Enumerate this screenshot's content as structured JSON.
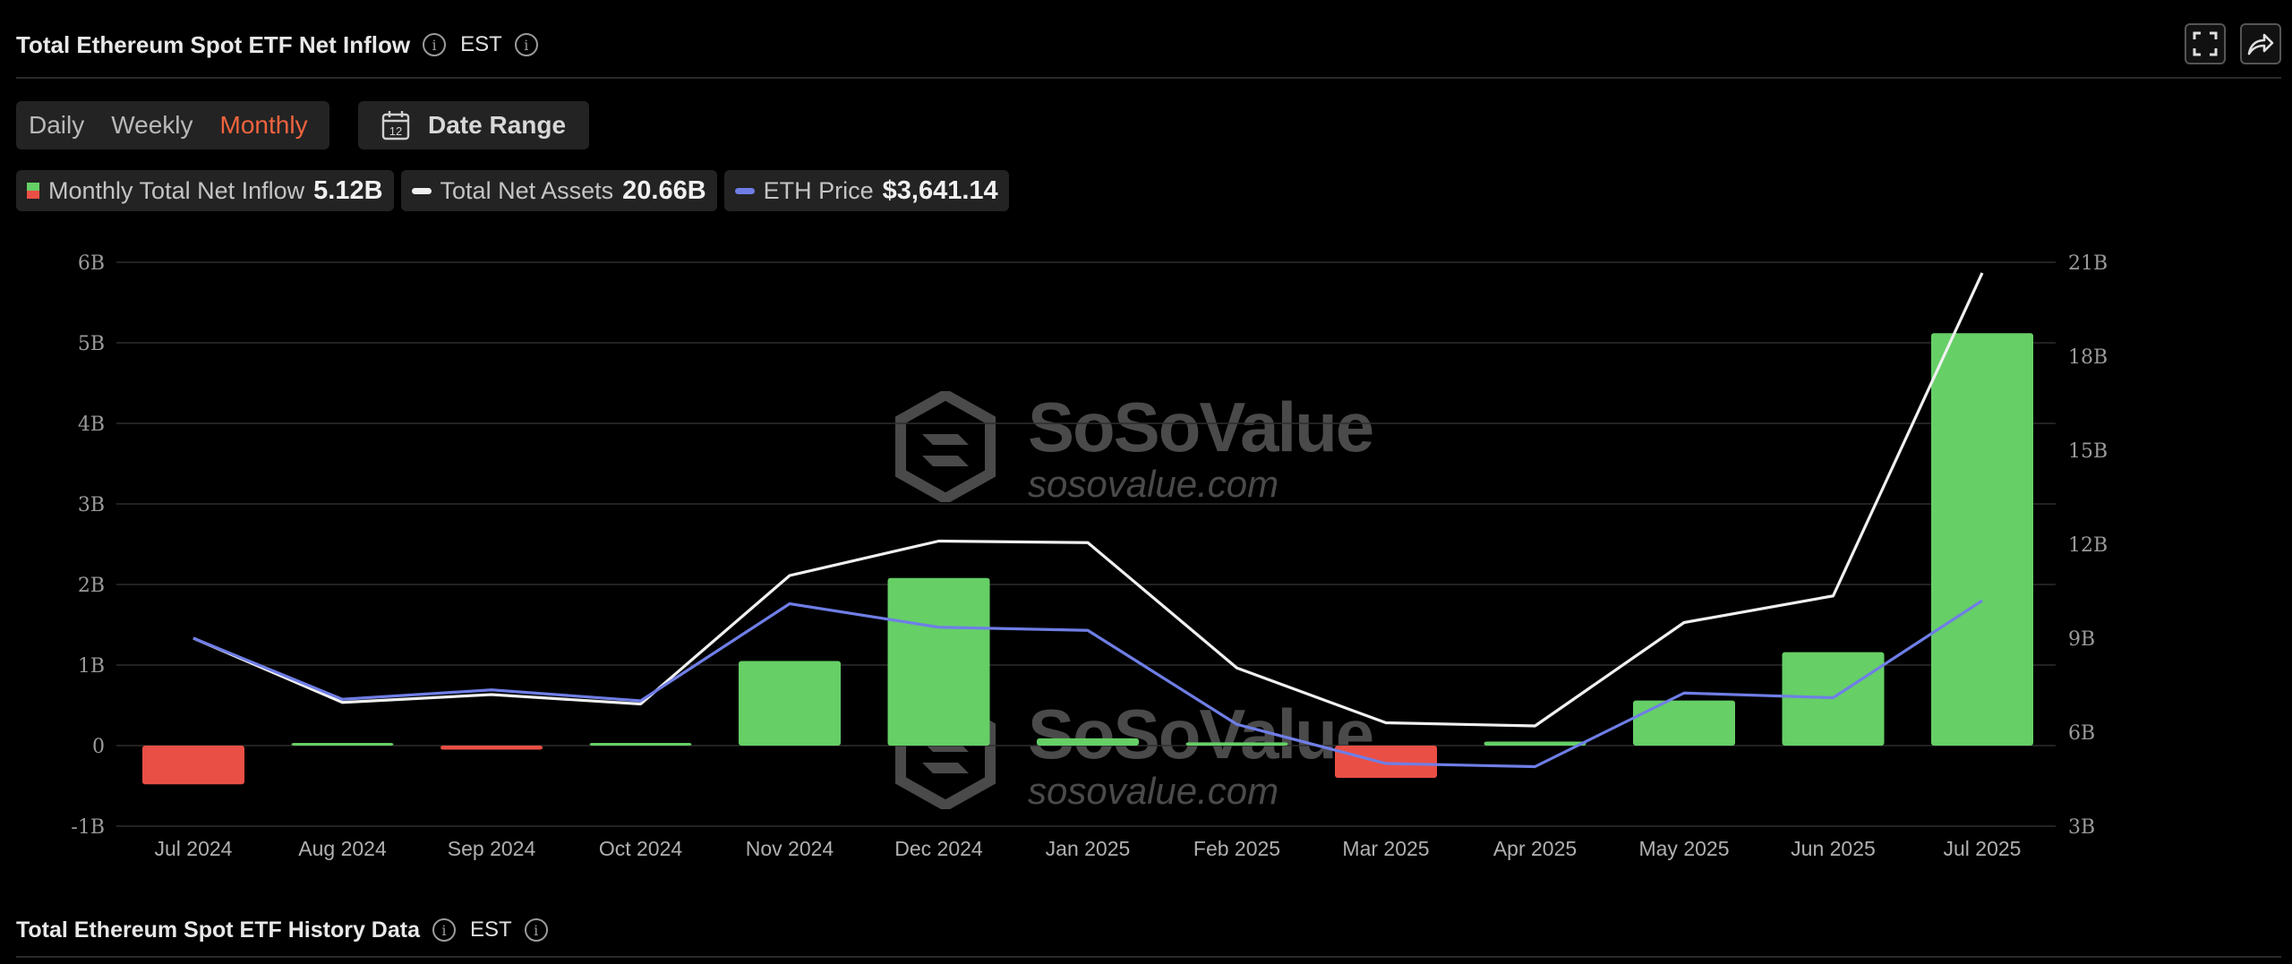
{
  "header": {
    "title": "Total Ethereum Spot ETF Net Inflow",
    "timezone": "EST"
  },
  "controls": {
    "periods": [
      "Daily",
      "Weekly",
      "Monthly"
    ],
    "active_period": "Monthly",
    "date_range_label": "Date Range",
    "calendar_day": "12"
  },
  "legend": {
    "net_inflow": {
      "label": "Monthly Total Net Inflow",
      "value": "5.12B"
    },
    "net_assets": {
      "label": "Total Net Assets",
      "value": "20.66B"
    },
    "eth_price": {
      "label": "ETH Price",
      "value": "$3,641.14"
    }
  },
  "watermark": {
    "brand": "SoSoValue",
    "domain": "sosovalue.com"
  },
  "colors": {
    "positive": "#66cf66",
    "negative": "#ea4f45",
    "net_assets_line": "#f0f0f0",
    "eth_price_line": "#6f7ee6",
    "active": "#f0643f"
  },
  "chart_data": {
    "type": "bar",
    "categories": [
      "Jul 2024",
      "Aug 2024",
      "Sep 2024",
      "Oct 2024",
      "Nov 2024",
      "Dec 2024",
      "Jan 2025",
      "Feb 2025",
      "Mar 2025",
      "Apr 2025",
      "May 2025",
      "Jun 2025",
      "Jul 2025"
    ],
    "left_axis": {
      "ylim": [
        -1,
        6
      ],
      "ticks": [
        "6B",
        "5B",
        "4B",
        "3B",
        "2B",
        "1B",
        "0",
        "-1B"
      ],
      "tick_values": [
        6,
        5,
        4,
        3,
        2,
        1,
        0,
        -1
      ]
    },
    "right_axis": {
      "ylim": [
        3,
        21
      ],
      "ticks": [
        "21B",
        "18B",
        "15B",
        "12B",
        "9B",
        "6B",
        "3B"
      ],
      "tick_values": [
        21,
        18,
        15,
        12,
        9,
        6,
        3
      ]
    },
    "grid": true,
    "series": [
      {
        "name": "Monthly Total Net Inflow",
        "kind": "bar",
        "axis": "left",
        "values": [
          -0.48,
          0.01,
          -0.05,
          0.03,
          1.05,
          2.08,
          0.09,
          0.04,
          -0.4,
          0.05,
          0.56,
          1.16,
          5.12
        ]
      },
      {
        "name": "Total Net Assets",
        "kind": "line",
        "axis": "right",
        "values": [
          9.0,
          6.95,
          7.2,
          6.9,
          11.0,
          12.1,
          12.05,
          8.05,
          6.3,
          6.2,
          9.5,
          10.35,
          20.66
        ]
      },
      {
        "name": "ETH Price",
        "kind": "line",
        "axis": "right",
        "values": [
          9.0,
          7.05,
          7.35,
          7.0,
          10.1,
          9.35,
          9.25,
          6.25,
          5.0,
          4.9,
          7.25,
          7.1,
          10.2
        ]
      }
    ]
  }
}
